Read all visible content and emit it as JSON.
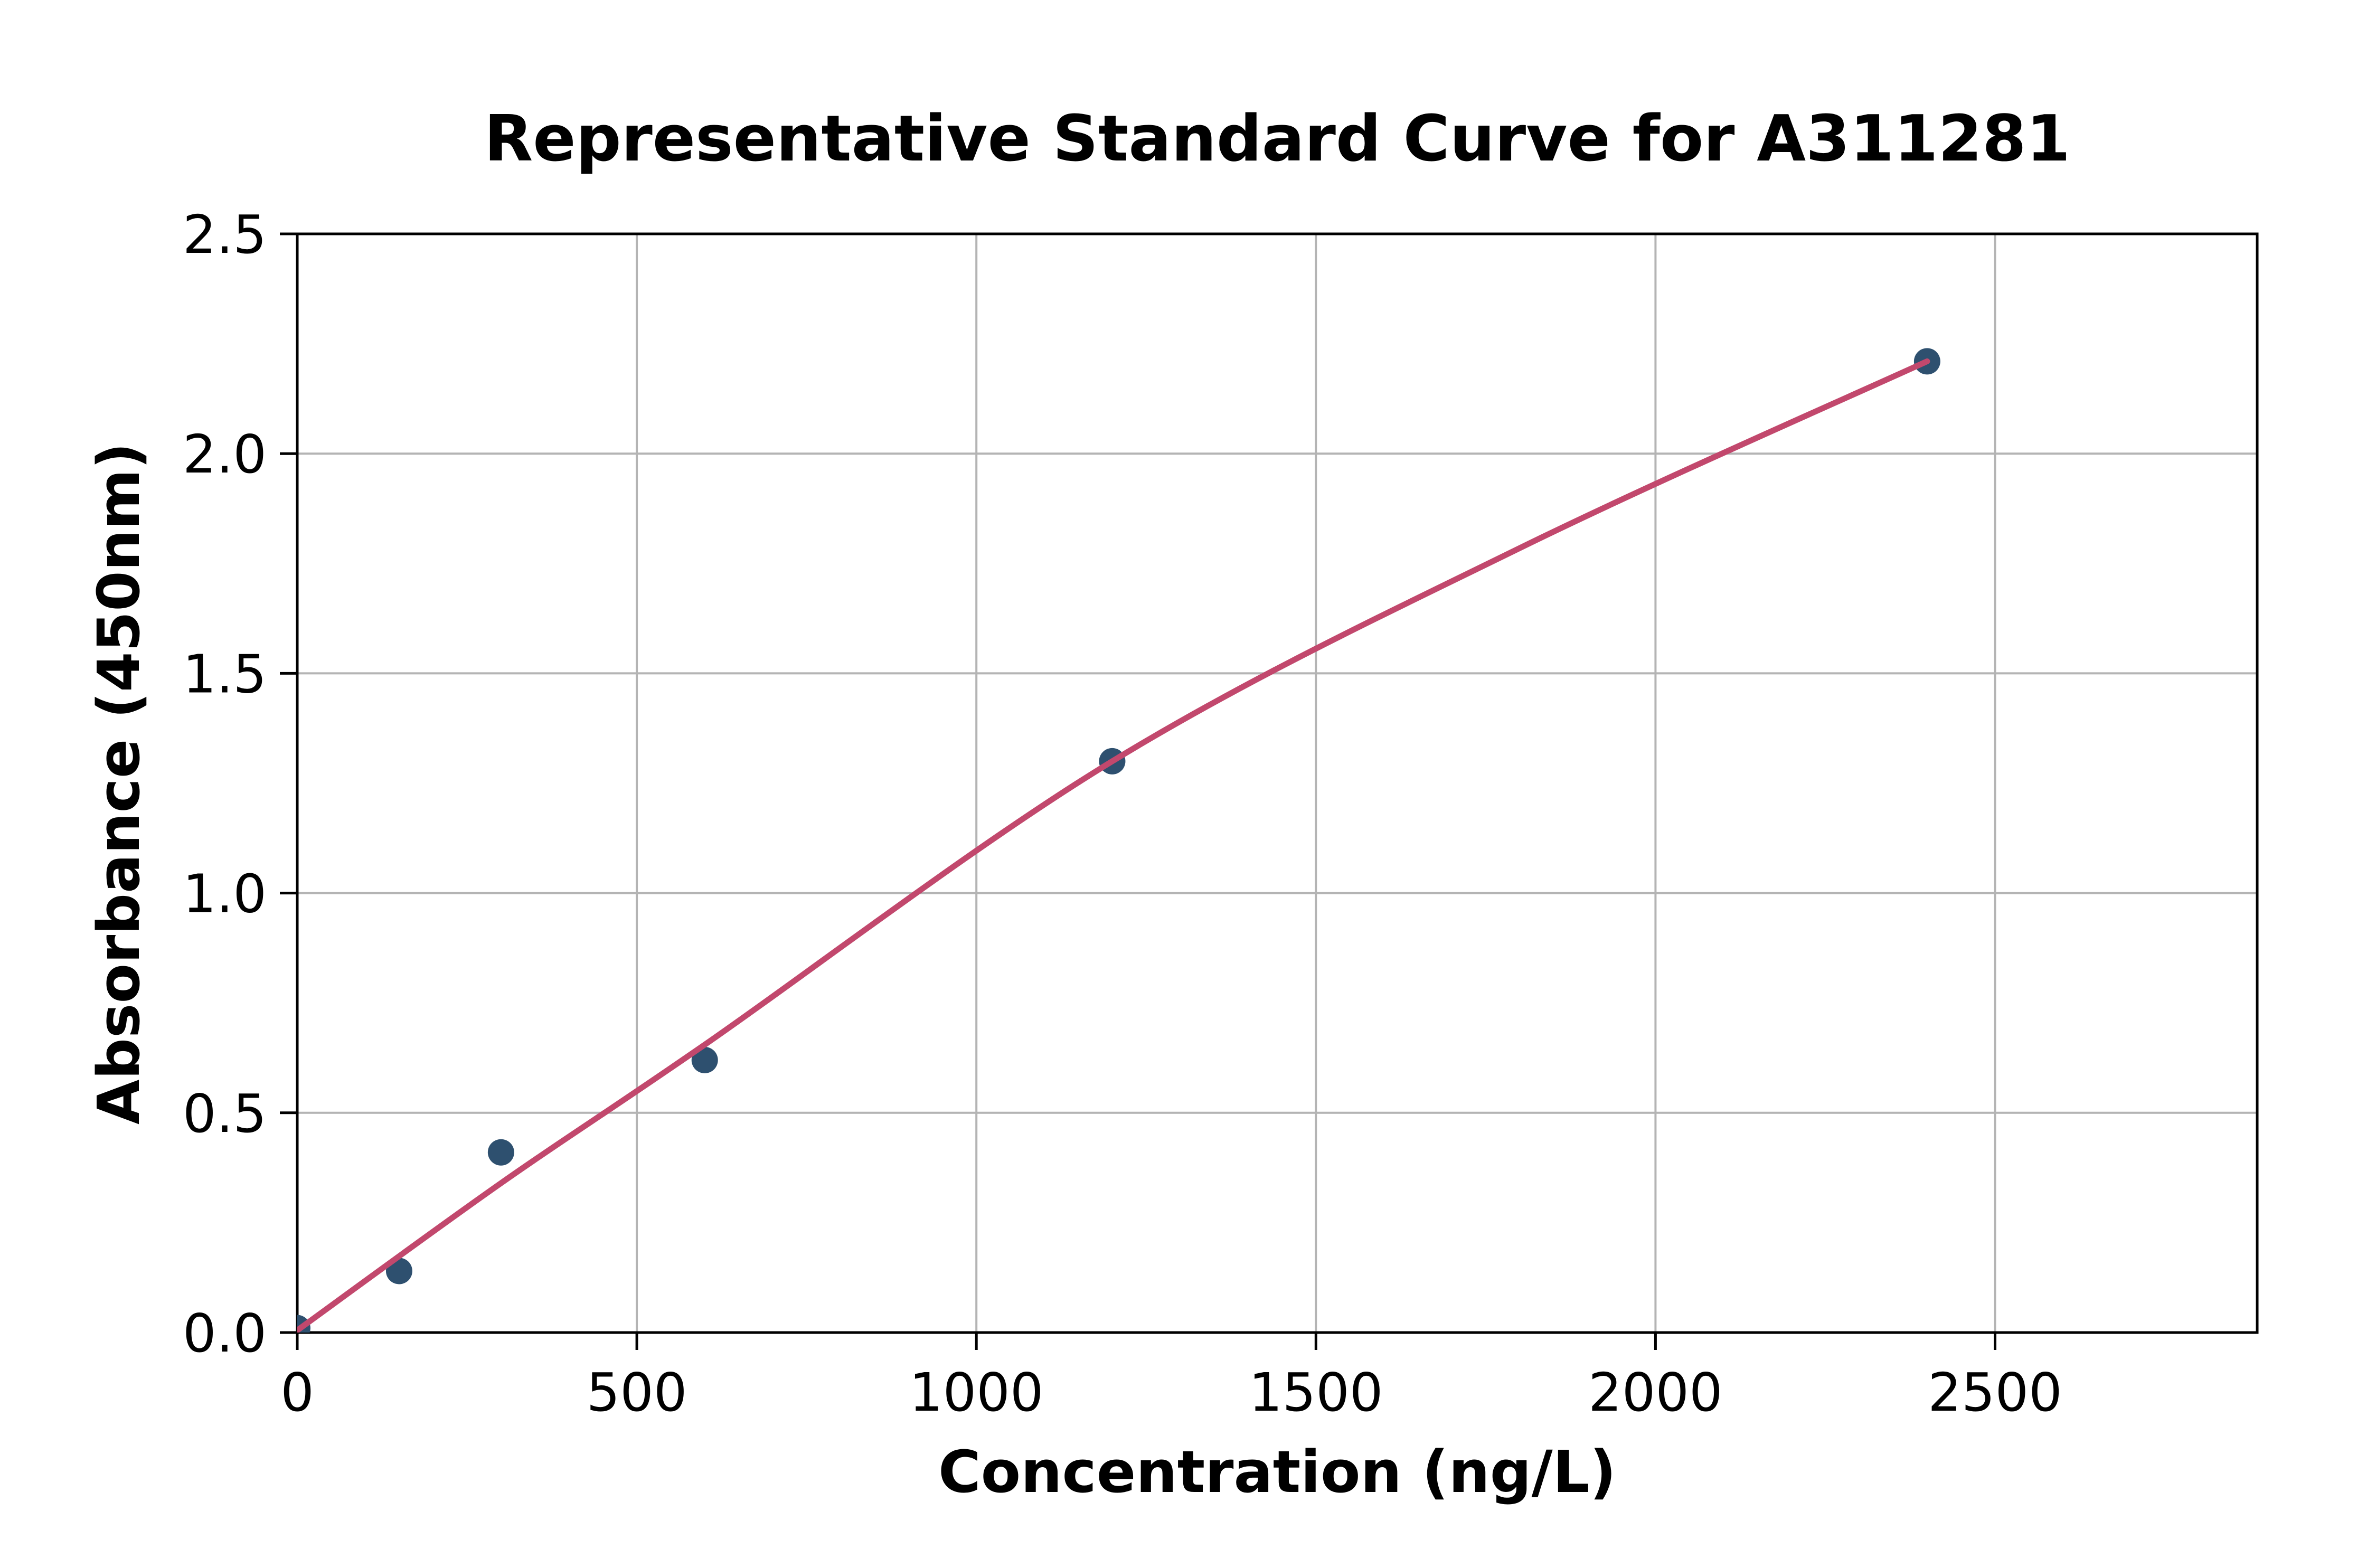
{
  "chart_data": {
    "type": "scatter",
    "title": "Representative Standard Curve for A311281",
    "xlabel": "Concentration (ng/L)",
    "ylabel": "Absorbance (450nm)",
    "xlim": [
      0,
      2886
    ],
    "ylim": [
      0,
      2.5
    ],
    "grid": true,
    "legend": null,
    "x_ticks": [
      0,
      500,
      1000,
      1500,
      2000,
      2500
    ],
    "x_tick_labels": [
      "0",
      "500",
      "1000",
      "1500",
      "2000",
      "2500"
    ],
    "y_ticks": [
      0,
      0.5,
      1.0,
      1.5,
      2.0,
      2.5
    ],
    "y_tick_labels": [
      "0.0",
      "0.5",
      "1.0",
      "1.5",
      "2.0",
      "2.5"
    ],
    "series": [
      {
        "name": "standard-points",
        "type": "scatter",
        "color": "#2e506f",
        "marker_radius": 25,
        "x": [
          0,
          150,
          300,
          600,
          1200,
          2400
        ],
        "y": [
          0.01,
          0.14,
          0.41,
          0.62,
          1.3,
          2.21
        ]
      },
      {
        "name": "fitted-curve",
        "type": "line",
        "color": "#c2486d",
        "line_width": 11,
        "x": [
          0,
          300,
          600,
          1200,
          1800,
          2400
        ],
        "y": [
          0.005,
          0.34,
          0.655,
          1.3,
          1.785,
          2.21
        ]
      }
    ],
    "colors": {
      "grid": "#b4b4b4",
      "axes": "#000000",
      "text": "#000000",
      "background": "#ffffff"
    }
  }
}
